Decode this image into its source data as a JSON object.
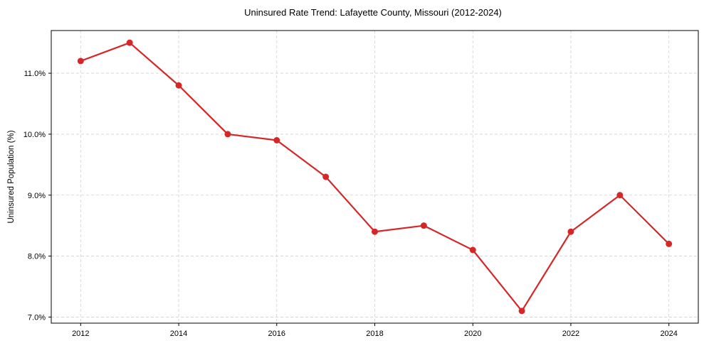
{
  "chart_data": {
    "type": "line",
    "title": "Uninsured Rate Trend: Lafayette County, Missouri (2012-2024)",
    "xlabel": "",
    "ylabel": "Uninsured Population (%)",
    "x": [
      2012,
      2013,
      2014,
      2015,
      2016,
      2017,
      2018,
      2019,
      2020,
      2021,
      2022,
      2023,
      2024
    ],
    "series": [
      {
        "name": "Uninsured Rate",
        "values": [
          11.2,
          11.5,
          10.8,
          10.0,
          9.9,
          9.3,
          8.4,
          8.5,
          8.1,
          7.1,
          8.4,
          9.0,
          8.2
        ],
        "color": "#d62728",
        "marker": "circle"
      }
    ],
    "xticks": [
      "2012",
      "2014",
      "2016",
      "2018",
      "2020",
      "2022",
      "2024"
    ],
    "yticks": [
      "7.0%",
      "8.0%",
      "9.0%",
      "10.0%",
      "11.0%"
    ],
    "ytick_values": [
      7.0,
      8.0,
      9.0,
      10.0,
      11.0
    ],
    "xticks_values": [
      2012,
      2014,
      2016,
      2018,
      2020,
      2022,
      2024
    ],
    "xlim": [
      2011.4,
      2024.6
    ],
    "ylim": [
      6.9,
      11.7
    ],
    "grid": true,
    "legend": null
  }
}
